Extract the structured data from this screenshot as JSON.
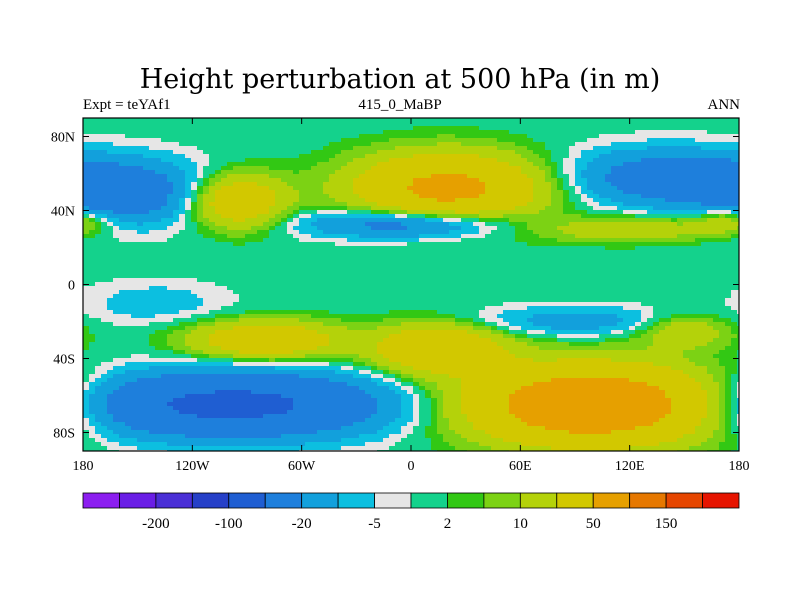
{
  "chart_data": {
    "type": "heatmap",
    "title": "Height perturbation at 500 hPa (in m)",
    "left_subtitle": "Expt = teYAf1",
    "center_subtitle": "415_0_MaBP",
    "right_subtitle": "ANN",
    "x_ticks": [
      {
        "label": "180",
        "lon": -180
      },
      {
        "label": "120W",
        "lon": -120
      },
      {
        "label": "60W",
        "lon": -60
      },
      {
        "label": "0",
        "lon": 0
      },
      {
        "label": "60E",
        "lon": 60
      },
      {
        "label": "120E",
        "lon": 120
      },
      {
        "label": "180",
        "lon": 180
      }
    ],
    "y_ticks": [
      {
        "label": "80N",
        "lat": 80
      },
      {
        "label": "40N",
        "lat": 40
      },
      {
        "label": "0",
        "lat": 0
      },
      {
        "label": "40S",
        "lat": -40
      },
      {
        "label": "80S",
        "lat": -80
      }
    ],
    "xlim": [
      -180,
      180
    ],
    "ylim": [
      -90,
      90
    ],
    "colorbar_colors": [
      "#8c1ef0",
      "#6a1ee6",
      "#4a2fd6",
      "#2640c8",
      "#1f5ed2",
      "#1e7fdc",
      "#12a0dc",
      "#0cbfe0",
      "#e6e6e6",
      "#14d28c",
      "#32c814",
      "#7cd214",
      "#b4d20a",
      "#d2c800",
      "#e6a000",
      "#e67800",
      "#e64600",
      "#e61400"
    ],
    "colorbar_labels": [
      {
        "label": "-200",
        "after_box": 2
      },
      {
        "label": "-100",
        "after_box": 4
      },
      {
        "label": "-20",
        "after_box": 6
      },
      {
        "label": "-5",
        "after_box": 8
      },
      {
        "label": "2",
        "after_box": 10
      },
      {
        "label": "10",
        "after_box": 12
      },
      {
        "label": "50",
        "after_box": 14
      },
      {
        "label": "150",
        "after_box": 16
      }
    ],
    "field_blobs": [
      {
        "lon": -160,
        "lat": 50,
        "value": -35,
        "rlon": 45,
        "rlat": 17
      },
      {
        "lon": -95,
        "lat": 45,
        "value": 40,
        "rlon": 25,
        "rlat": 14
      },
      {
        "lon": 20,
        "lat": 52,
        "value": 60,
        "rlon": 50,
        "rlat": 18
      },
      {
        "lon": 0,
        "lat": 33,
        "value": -35,
        "rlon": 55,
        "rlat": 8
      },
      {
        "lon": 135,
        "lat": 58,
        "value": -30,
        "rlon": 50,
        "rlat": 15
      },
      {
        "lon": 120,
        "lat": 30,
        "value": 18,
        "rlon": 55,
        "rlat": 7
      },
      {
        "lon": 175,
        "lat": 35,
        "value": 20,
        "rlon": 20,
        "rlat": 7
      },
      {
        "lon": -80,
        "lat": -30,
        "value": 40,
        "rlon": 40,
        "rlat": 10
      },
      {
        "lon": 15,
        "lat": -35,
        "value": 45,
        "rlon": 35,
        "rlat": 13
      },
      {
        "lon": 90,
        "lat": -20,
        "value": -15,
        "rlon": 60,
        "rlat": 8
      },
      {
        "lon": 150,
        "lat": -25,
        "value": 20,
        "rlon": 25,
        "rlat": 9
      },
      {
        "lon": -100,
        "lat": -65,
        "value": -60,
        "rlon": 85,
        "rlat": 17
      },
      {
        "lon": 100,
        "lat": -65,
        "value": 90,
        "rlon": 65,
        "rlat": 20
      },
      {
        "lon": -140,
        "lat": -10,
        "value": -8,
        "rlon": 40,
        "rlat": 12
      }
    ],
    "field_note": "Values in m; approximate representation of the contoured field."
  }
}
